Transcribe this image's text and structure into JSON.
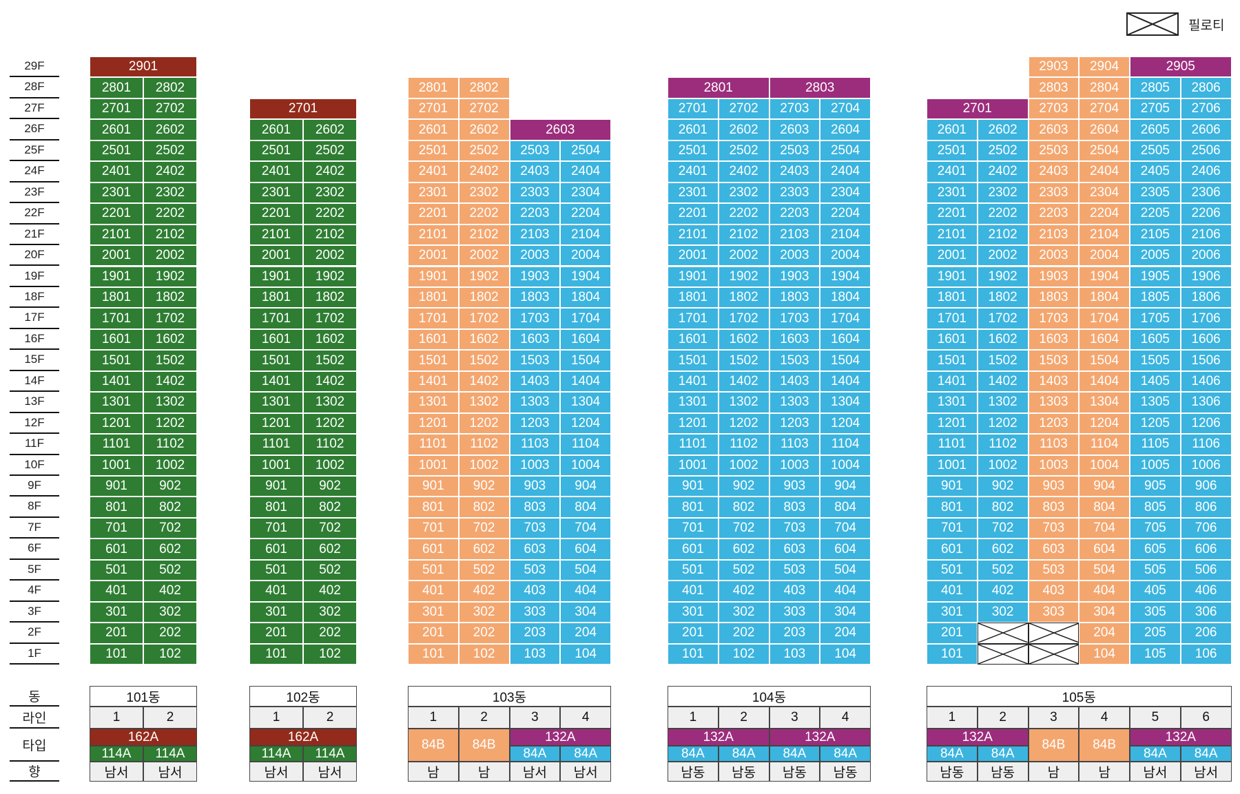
{
  "legend": {
    "piloti_label": "필로티"
  },
  "colors": {
    "green": "#2e7d32",
    "red": "#922b1b",
    "orange": "#f4a66f",
    "blue": "#3bb4df",
    "purple": "#9c2d7c"
  },
  "floor_labels": [
    "29F",
    "28F",
    "27F",
    "26F",
    "25F",
    "24F",
    "23F",
    "22F",
    "21F",
    "20F",
    "19F",
    "18F",
    "17F",
    "16F",
    "15F",
    "14F",
    "13F",
    "12F",
    "11F",
    "10F",
    "9F",
    "8F",
    "7F",
    "6F",
    "5F",
    "4F",
    "3F",
    "2F",
    "1F"
  ],
  "row_labels": {
    "dong": "동",
    "line": "라인",
    "type": "타입",
    "direction": "향"
  },
  "buildings": [
    {
      "name": "101동",
      "lines": [
        "1",
        "2"
      ],
      "units": [
        {
          "floors": [
            1,
            28
          ],
          "lines": [
            1
          ],
          "label": "{f}01",
          "color": "green"
        },
        {
          "floors": [
            1,
            28
          ],
          "lines": [
            2
          ],
          "label": "{f}02",
          "color": "green"
        },
        {
          "floors": [
            29,
            29
          ],
          "lines": [
            1,
            2
          ],
          "label": "2901",
          "color": "red"
        }
      ],
      "types": [
        {
          "span": [
            1,
            2
          ],
          "rows": [
            1,
            1
          ],
          "label": "162A",
          "color": "red"
        },
        {
          "span": [
            1,
            1
          ],
          "rows": [
            2,
            2
          ],
          "label": "114A",
          "color": "green"
        },
        {
          "span": [
            2,
            2
          ],
          "rows": [
            2,
            2
          ],
          "label": "114A",
          "color": "green"
        }
      ],
      "directions": [
        "남서",
        "남서"
      ]
    },
    {
      "name": "102동",
      "lines": [
        "1",
        "2"
      ],
      "units": [
        {
          "floors": [
            1,
            26
          ],
          "lines": [
            1
          ],
          "label": "{f}01",
          "color": "green"
        },
        {
          "floors": [
            1,
            26
          ],
          "lines": [
            2
          ],
          "label": "{f}02",
          "color": "green"
        },
        {
          "floors": [
            27,
            27
          ],
          "lines": [
            1,
            2
          ],
          "label": "2701",
          "color": "red"
        }
      ],
      "types": [
        {
          "span": [
            1,
            2
          ],
          "rows": [
            1,
            1
          ],
          "label": "162A",
          "color": "red"
        },
        {
          "span": [
            1,
            1
          ],
          "rows": [
            2,
            2
          ],
          "label": "114A",
          "color": "green"
        },
        {
          "span": [
            2,
            2
          ],
          "rows": [
            2,
            2
          ],
          "label": "114A",
          "color": "green"
        }
      ],
      "directions": [
        "남서",
        "남서"
      ]
    },
    {
      "name": "103동",
      "lines": [
        "1",
        "2",
        "3",
        "4"
      ],
      "units": [
        {
          "floors": [
            1,
            28
          ],
          "lines": [
            1
          ],
          "label": "{f}01",
          "color": "orange"
        },
        {
          "floors": [
            1,
            28
          ],
          "lines": [
            2
          ],
          "label": "{f}02",
          "color": "orange"
        },
        {
          "floors": [
            1,
            25
          ],
          "lines": [
            3
          ],
          "label": "{f}03",
          "color": "blue"
        },
        {
          "floors": [
            1,
            25
          ],
          "lines": [
            4
          ],
          "label": "{f}04",
          "color": "blue"
        },
        {
          "floors": [
            26,
            26
          ],
          "lines": [
            3,
            4
          ],
          "label": "2603",
          "color": "purple"
        }
      ],
      "types": [
        {
          "span": [
            1,
            1
          ],
          "rows": [
            1,
            2
          ],
          "label": "84B",
          "color": "orange"
        },
        {
          "span": [
            2,
            2
          ],
          "rows": [
            1,
            2
          ],
          "label": "84B",
          "color": "orange"
        },
        {
          "span": [
            3,
            4
          ],
          "rows": [
            1,
            1
          ],
          "label": "132A",
          "color": "purple"
        },
        {
          "span": [
            3,
            3
          ],
          "rows": [
            2,
            2
          ],
          "label": "84A",
          "color": "blue"
        },
        {
          "span": [
            4,
            4
          ],
          "rows": [
            2,
            2
          ],
          "label": "84A",
          "color": "blue"
        }
      ],
      "directions": [
        "남",
        "남",
        "남서",
        "남서"
      ]
    },
    {
      "name": "104동",
      "lines": [
        "1",
        "2",
        "3",
        "4"
      ],
      "units": [
        {
          "floors": [
            1,
            27
          ],
          "lines": [
            1
          ],
          "label": "{f}01",
          "color": "blue"
        },
        {
          "floors": [
            1,
            27
          ],
          "lines": [
            2
          ],
          "label": "{f}02",
          "color": "blue"
        },
        {
          "floors": [
            1,
            27
          ],
          "lines": [
            3
          ],
          "label": "{f}03",
          "color": "blue"
        },
        {
          "floors": [
            1,
            27
          ],
          "lines": [
            4
          ],
          "label": "{f}04",
          "color": "blue"
        },
        {
          "floors": [
            28,
            28
          ],
          "lines": [
            1,
            2
          ],
          "label": "2801",
          "color": "purple"
        },
        {
          "floors": [
            28,
            28
          ],
          "lines": [
            3,
            4
          ],
          "label": "2803",
          "color": "purple"
        }
      ],
      "types": [
        {
          "span": [
            1,
            2
          ],
          "rows": [
            1,
            1
          ],
          "label": "132A",
          "color": "purple"
        },
        {
          "span": [
            3,
            4
          ],
          "rows": [
            1,
            1
          ],
          "label": "132A",
          "color": "purple"
        },
        {
          "span": [
            1,
            1
          ],
          "rows": [
            2,
            2
          ],
          "label": "84A",
          "color": "blue"
        },
        {
          "span": [
            2,
            2
          ],
          "rows": [
            2,
            2
          ],
          "label": "84A",
          "color": "blue"
        },
        {
          "span": [
            3,
            3
          ],
          "rows": [
            2,
            2
          ],
          "label": "84A",
          "color": "blue"
        },
        {
          "span": [
            4,
            4
          ],
          "rows": [
            2,
            2
          ],
          "label": "84A",
          "color": "blue"
        }
      ],
      "directions": [
        "남동",
        "남동",
        "남동",
        "남동"
      ]
    },
    {
      "name": "105동",
      "lines": [
        "1",
        "2",
        "3",
        "4",
        "5",
        "6"
      ],
      "units": [
        {
          "floors": [
            1,
            26
          ],
          "lines": [
            1
          ],
          "label": "{f}01",
          "color": "blue"
        },
        {
          "floors": [
            3,
            26
          ],
          "lines": [
            2
          ],
          "label": "{f}02",
          "color": "blue"
        },
        {
          "floors": [
            1,
            2
          ],
          "lines": [
            2
          ],
          "label": "",
          "color": "piloti"
        },
        {
          "floors": [
            27,
            27
          ],
          "lines": [
            1,
            2
          ],
          "label": "2701",
          "color": "purple"
        },
        {
          "floors": [
            3,
            29
          ],
          "lines": [
            3
          ],
          "label": "{f}03",
          "color": "orange"
        },
        {
          "floors": [
            1,
            2
          ],
          "lines": [
            3
          ],
          "label": "",
          "color": "piloti"
        },
        {
          "floors": [
            1,
            29
          ],
          "lines": [
            4
          ],
          "label": "{f}04",
          "color": "orange"
        },
        {
          "floors": [
            1,
            28
          ],
          "lines": [
            5
          ],
          "label": "{f}05",
          "color": "blue"
        },
        {
          "floors": [
            1,
            28
          ],
          "lines": [
            6
          ],
          "label": "{f}06",
          "color": "blue"
        },
        {
          "floors": [
            29,
            29
          ],
          "lines": [
            5,
            6
          ],
          "label": "2905",
          "color": "purple"
        }
      ],
      "types": [
        {
          "span": [
            1,
            2
          ],
          "rows": [
            1,
            1
          ],
          "label": "132A",
          "color": "purple"
        },
        {
          "span": [
            1,
            1
          ],
          "rows": [
            2,
            2
          ],
          "label": "84A",
          "color": "blue"
        },
        {
          "span": [
            2,
            2
          ],
          "rows": [
            2,
            2
          ],
          "label": "84A",
          "color": "blue"
        },
        {
          "span": [
            3,
            3
          ],
          "rows": [
            1,
            2
          ],
          "label": "84B",
          "color": "orange"
        },
        {
          "span": [
            4,
            4
          ],
          "rows": [
            1,
            2
          ],
          "label": "84B",
          "color": "orange"
        },
        {
          "span": [
            5,
            6
          ],
          "rows": [
            1,
            1
          ],
          "label": "132A",
          "color": "purple"
        },
        {
          "span": [
            5,
            5
          ],
          "rows": [
            2,
            2
          ],
          "label": "84A",
          "color": "blue"
        },
        {
          "span": [
            6,
            6
          ],
          "rows": [
            2,
            2
          ],
          "label": "84A",
          "color": "blue"
        }
      ],
      "directions": [
        "남동",
        "남동",
        "남",
        "남",
        "남서",
        "남서"
      ]
    }
  ]
}
